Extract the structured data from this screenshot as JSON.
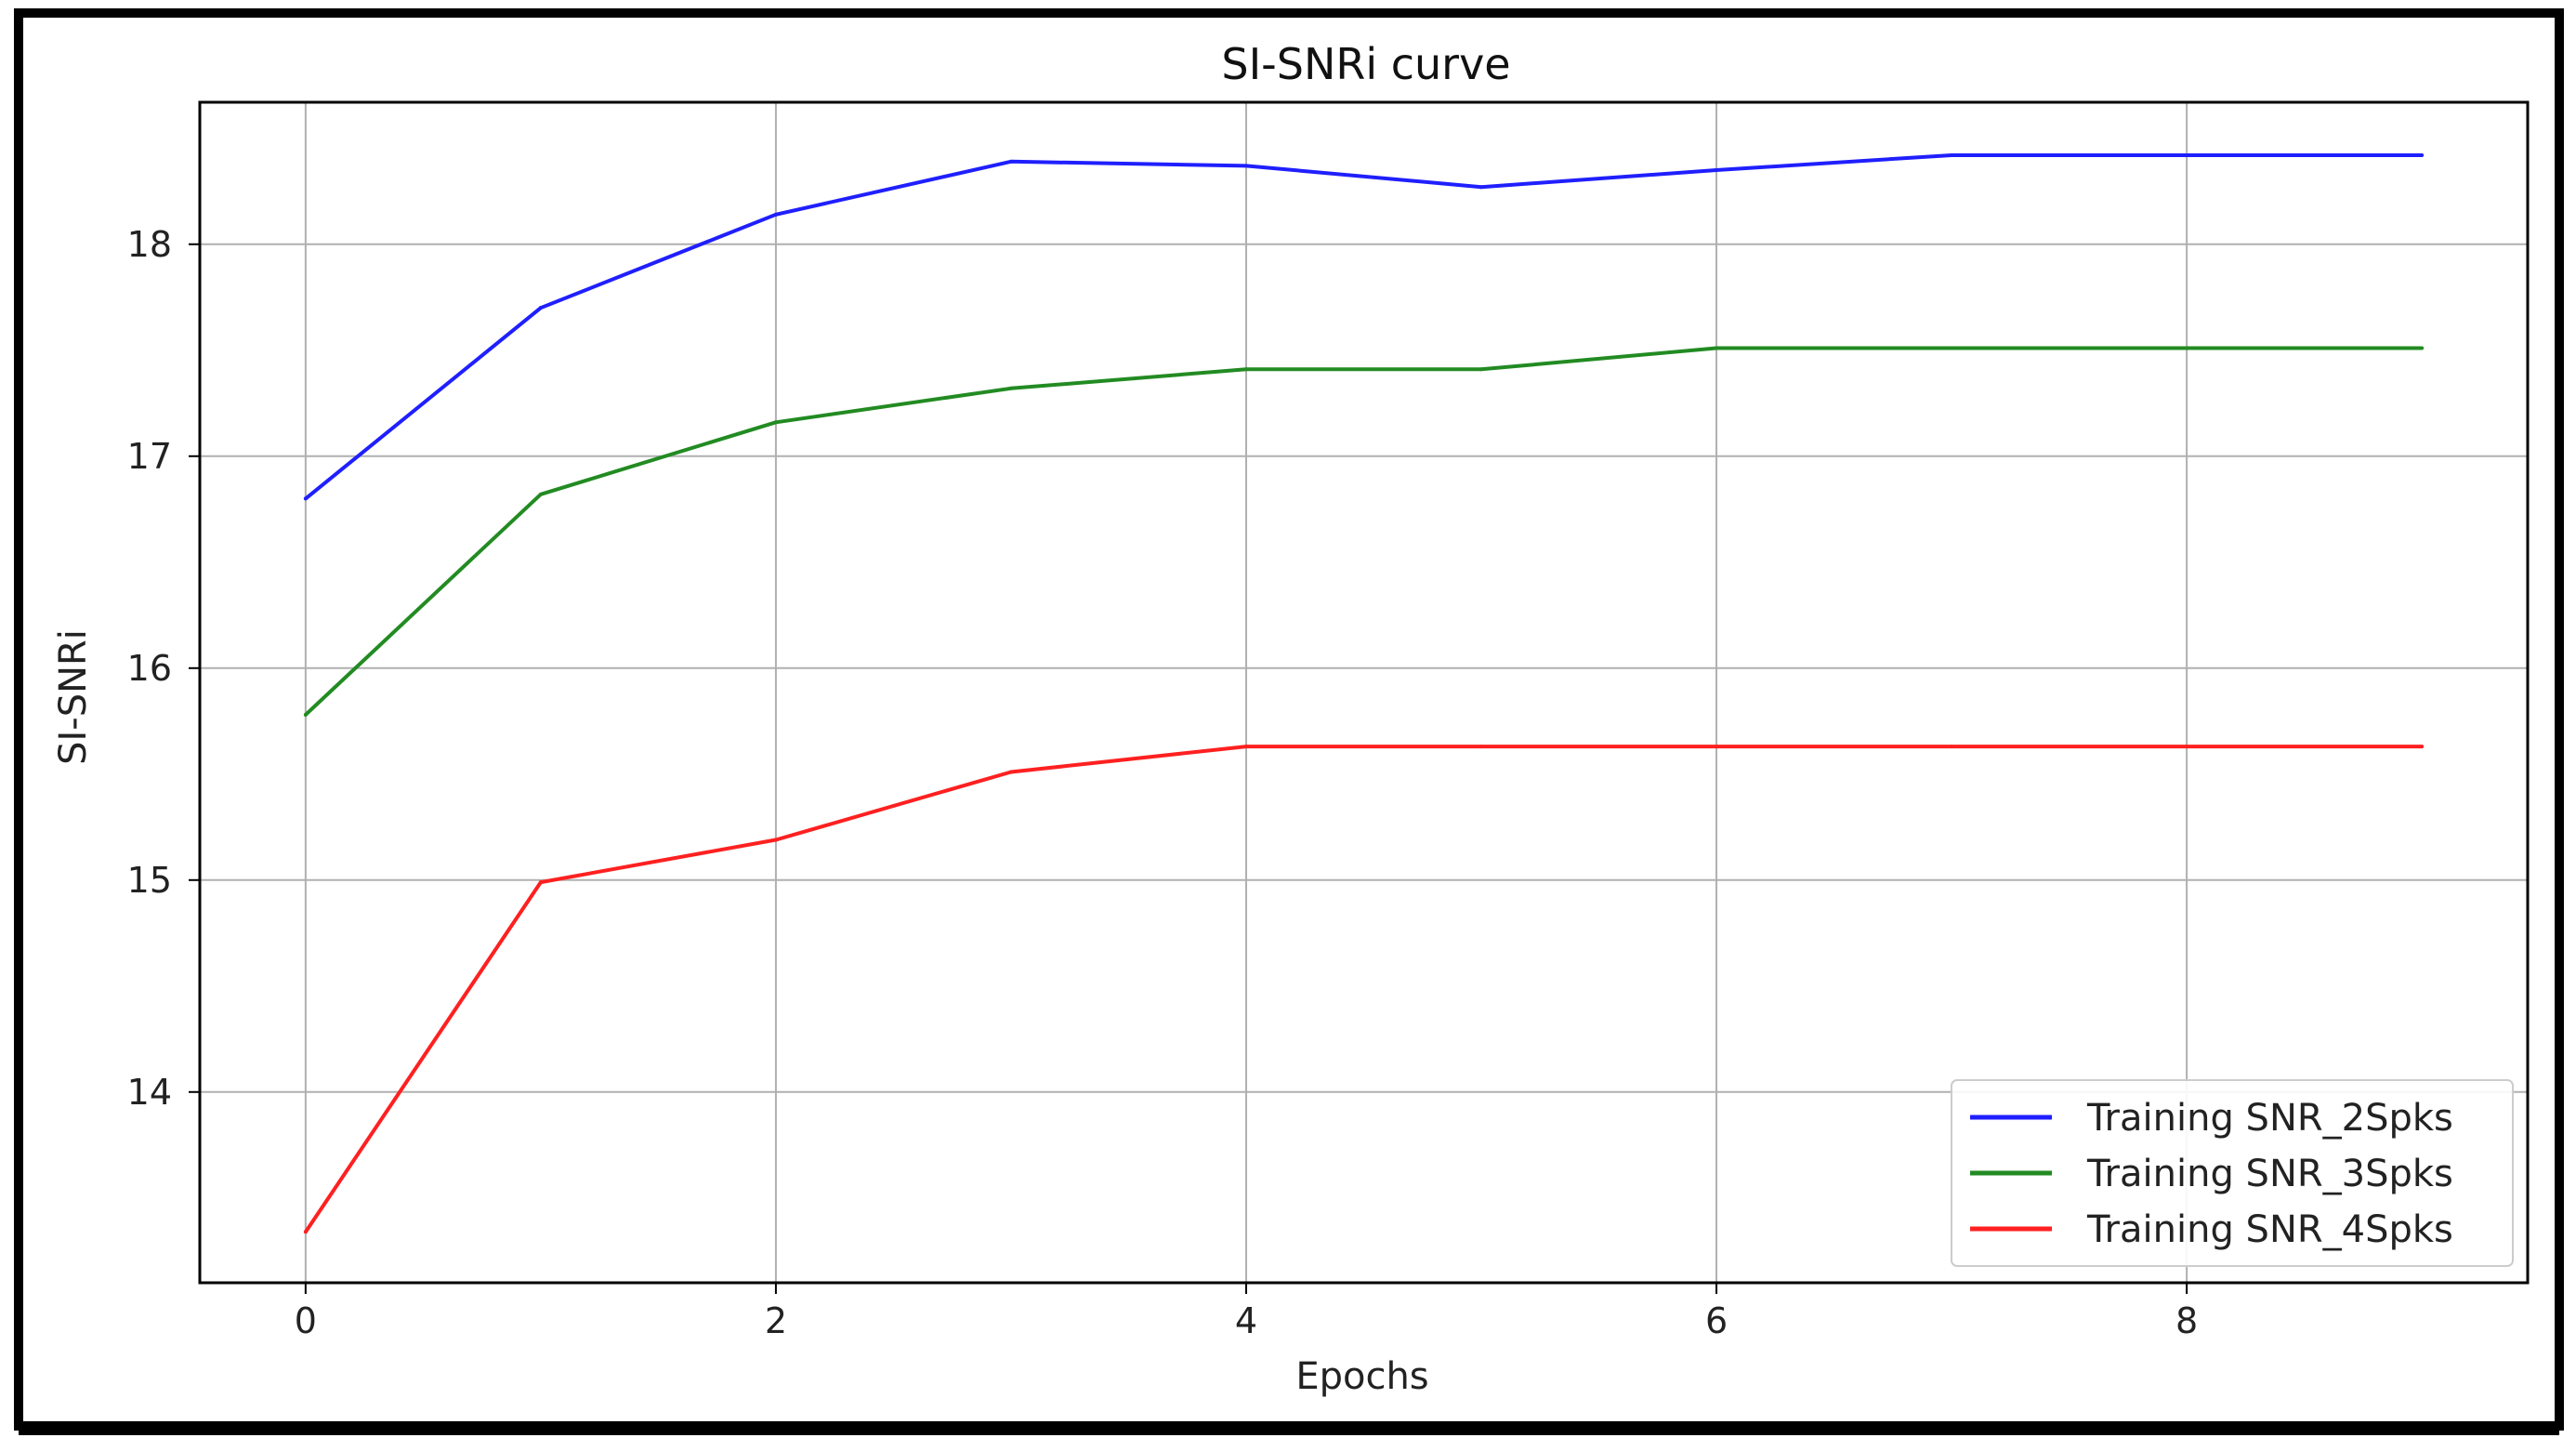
{
  "chart_data": {
    "type": "line",
    "title": "SI-SNRi curve",
    "xlabel": "Epochs",
    "ylabel": "SI-SNRi",
    "x": [
      0,
      1,
      2,
      3,
      4,
      5,
      6,
      7,
      8,
      9
    ],
    "xlim": [
      -0.45,
      9.45
    ],
    "ylim": [
      13.1,
      18.67
    ],
    "xticks": [
      0,
      2,
      4,
      6,
      8
    ],
    "yticks": [
      14,
      15,
      16,
      17,
      18
    ],
    "grid": true,
    "legend_position": "lower-right",
    "series": [
      {
        "name": "Training SNR_2Spks",
        "color": "#1f1fff",
        "values": [
          16.8,
          17.7,
          18.14,
          18.39,
          18.37,
          18.27,
          18.35,
          18.42,
          18.42,
          18.42
        ]
      },
      {
        "name": "Training SNR_3Spks",
        "color": "#228b22",
        "values": [
          15.78,
          16.82,
          17.16,
          17.32,
          17.41,
          17.41,
          17.51,
          17.51,
          17.51,
          17.51
        ]
      },
      {
        "name": "Training SNR_4Spks",
        "color": "#ff2020",
        "values": [
          13.34,
          14.99,
          15.19,
          15.51,
          15.63,
          15.63,
          15.63,
          15.63,
          15.63,
          15.63
        ]
      }
    ]
  }
}
